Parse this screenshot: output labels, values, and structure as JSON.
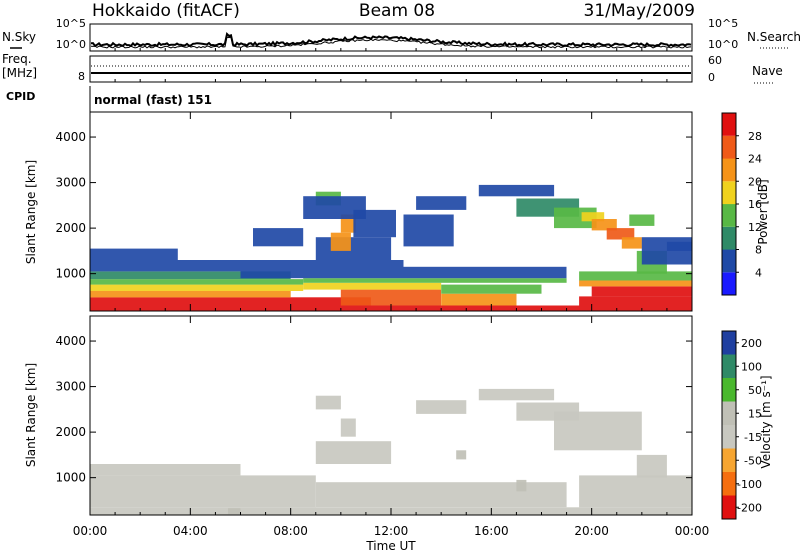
{
  "header": {
    "station": "Hokkaido (fitACF)",
    "beam": "Beam 08",
    "date": "31/May/2009"
  },
  "top_panels": {
    "nsky_label": "N.Sky",
    "nsearch_label": "N.Search",
    "noise_ticks": [
      "10^5",
      "10^0"
    ],
    "freq_label_1": "Freq.",
    "freq_label_2": "[MHz]",
    "freq_tick": "8",
    "nave_label": "Nave",
    "nave_ticks": [
      "60",
      "0"
    ],
    "cpid_label": "CPID",
    "cpid_value": "normal (fast) 151"
  },
  "colors": {
    "power": [
      "#1a1aff",
      "#1f49a6",
      "#2f8a67",
      "#58b845",
      "#f0d21e",
      "#f59318",
      "#ef5a18",
      "#e01010"
    ],
    "velocity": [
      "#e01010",
      "#f56e0f",
      "#f6a531",
      "#c8c8c0",
      "#c0c0b6",
      "#4ab82e",
      "#2f8a67",
      "#1f3fa0"
    ]
  },
  "chart_data": [
    {
      "type": "heatmap",
      "name": "power",
      "xlabel": "",
      "ylabel": "Slant Range [km]",
      "xlim": [
        0,
        24
      ],
      "ylim": [
        180,
        4550
      ],
      "y_ticks": [
        "1000",
        "2000",
        "3000",
        "4000"
      ],
      "y_tick_values": [
        1000,
        2000,
        3000,
        4000
      ],
      "colorbar_label": "Power [dB]",
      "colorbar_ticks": [
        "4",
        "8",
        "12",
        "16",
        "20",
        "24",
        "28"
      ],
      "colorbar_tick_values": [
        4,
        8,
        12,
        16,
        20,
        24,
        28
      ],
      "colorbar_range": [
        0,
        32
      ],
      "regions": [
        {
          "t0": 0.0,
          "t1": 24.0,
          "r0": 180,
          "r1": 300,
          "v": 30
        },
        {
          "t0": 0.0,
          "t1": 11.2,
          "r0": 300,
          "r1": 480,
          "v": 30
        },
        {
          "t0": 10.0,
          "t1": 14.0,
          "r0": 300,
          "r1": 650,
          "v": 25
        },
        {
          "t0": 14.0,
          "t1": 17.0,
          "r0": 300,
          "r1": 560,
          "v": 22
        },
        {
          "t0": 19.5,
          "t1": 24.0,
          "r0": 300,
          "r1": 500,
          "v": 30
        },
        {
          "t0": 0.0,
          "t1": 8.0,
          "r0": 480,
          "r1": 620,
          "v": 21
        },
        {
          "t0": 20.0,
          "t1": 24.0,
          "r0": 500,
          "r1": 720,
          "v": 28
        },
        {
          "t0": 0.0,
          "t1": 8.5,
          "r0": 620,
          "r1": 760,
          "v": 17
        },
        {
          "t0": 8.5,
          "t1": 14.0,
          "r0": 650,
          "r1": 800,
          "v": 16
        },
        {
          "t0": 14.0,
          "t1": 18.0,
          "r0": 560,
          "r1": 760,
          "v": 15
        },
        {
          "t0": 0.0,
          "t1": 8.5,
          "r0": 760,
          "r1": 880,
          "v": 13
        },
        {
          "t0": 8.5,
          "t1": 19.0,
          "r0": 800,
          "r1": 900,
          "v": 12
        },
        {
          "t0": 19.5,
          "t1": 24.0,
          "r0": 720,
          "r1": 850,
          "v": 21
        },
        {
          "t0": 0.0,
          "t1": 8.0,
          "r0": 880,
          "r1": 1050,
          "v": 11
        },
        {
          "t0": 19.5,
          "t1": 24.0,
          "r0": 850,
          "r1": 1050,
          "v": 12
        },
        {
          "t0": 0.0,
          "t1": 6.0,
          "r0": 1050,
          "r1": 1300,
          "v": 7
        },
        {
          "t0": 6.0,
          "t1": 12.5,
          "r0": 900,
          "r1": 1300,
          "v": 6
        },
        {
          "t0": 12.5,
          "t1": 19.0,
          "r0": 900,
          "r1": 1150,
          "v": 6
        },
        {
          "t0": 0.0,
          "t1": 3.5,
          "r0": 1300,
          "r1": 1550,
          "v": 5
        },
        {
          "t0": 9.0,
          "t1": 12.0,
          "r0": 1300,
          "r1": 1800,
          "v": 5
        },
        {
          "t0": 9.6,
          "t1": 10.4,
          "r0": 1500,
          "r1": 1900,
          "v": 20
        },
        {
          "t0": 10.0,
          "t1": 10.6,
          "r0": 1900,
          "r1": 2300,
          "v": 21
        },
        {
          "t0": 9.0,
          "t1": 10.0,
          "r0": 2500,
          "r1": 2800,
          "v": 13
        },
        {
          "t0": 8.5,
          "t1": 11.0,
          "r0": 2200,
          "r1": 2700,
          "v": 6
        },
        {
          "t0": 10.5,
          "t1": 12.2,
          "r0": 1800,
          "r1": 2400,
          "v": 6
        },
        {
          "t0": 6.5,
          "t1": 8.5,
          "r0": 1600,
          "r1": 2000,
          "v": 5
        },
        {
          "t0": 12.5,
          "t1": 14.5,
          "r0": 1600,
          "r1": 2300,
          "v": 5
        },
        {
          "t0": 13.0,
          "t1": 15.0,
          "r0": 2400,
          "r1": 2700,
          "v": 6
        },
        {
          "t0": 15.5,
          "t1": 18.5,
          "r0": 2700,
          "r1": 2950,
          "v": 7
        },
        {
          "t0": 17.0,
          "t1": 19.5,
          "r0": 2250,
          "r1": 2650,
          "v": 8
        },
        {
          "t0": 18.5,
          "t1": 20.2,
          "r0": 2000,
          "r1": 2450,
          "v": 12
        },
        {
          "t0": 19.6,
          "t1": 20.5,
          "r0": 2150,
          "r1": 2350,
          "v": 18
        },
        {
          "t0": 20.0,
          "t1": 21.0,
          "r0": 1950,
          "r1": 2200,
          "v": 23
        },
        {
          "t0": 20.6,
          "t1": 21.7,
          "r0": 1750,
          "r1": 2000,
          "v": 27
        },
        {
          "t0": 21.2,
          "t1": 22.0,
          "r0": 1550,
          "r1": 1800,
          "v": 23
        },
        {
          "t0": 21.8,
          "t1": 23.0,
          "r0": 1000,
          "r1": 1500,
          "v": 14
        },
        {
          "t0": 21.5,
          "t1": 22.5,
          "r0": 2050,
          "r1": 2300,
          "v": 15
        },
        {
          "t0": 22.0,
          "t1": 24.0,
          "r0": 1200,
          "r1": 1800,
          "v": 6
        },
        {
          "t0": 23.0,
          "t1": 24.0,
          "r0": 1500,
          "r1": 1700,
          "v": 6
        }
      ]
    },
    {
      "type": "heatmap",
      "name": "velocity",
      "xlabel": "Time UT",
      "ylabel": "Slant Range [km]",
      "xlim": [
        0,
        24
      ],
      "ylim": [
        180,
        4550
      ],
      "x_ticks": [
        "00:00",
        "04:00",
        "08:00",
        "12:00",
        "16:00",
        "20:00",
        "00:00"
      ],
      "x_tick_values": [
        0,
        4,
        8,
        12,
        16,
        20,
        24
      ],
      "y_ticks": [
        "1000",
        "2000",
        "3000",
        "4000"
      ],
      "y_tick_values": [
        1000,
        2000,
        3000,
        4000
      ],
      "colorbar_label": "Velocity [m s⁻¹]",
      "colorbar_ticks": [
        "-200",
        "-100",
        "-50",
        "-15",
        "15",
        "50",
        "100",
        "200"
      ],
      "colorbar_tick_values": [
        -200,
        -100,
        -50,
        -15,
        15,
        50,
        100,
        200
      ],
      "regions": [
        {
          "t0": 0.0,
          "t1": 24.0,
          "r0": 180,
          "r1": 350,
          "v": 0
        },
        {
          "t0": 0.0,
          "t1": 9.0,
          "r0": 350,
          "r1": 1050,
          "v": 0
        },
        {
          "t0": 9.0,
          "t1": 19.0,
          "r0": 350,
          "r1": 900,
          "v": 0
        },
        {
          "t0": 19.5,
          "t1": 24.0,
          "r0": 350,
          "r1": 1050,
          "v": 0
        },
        {
          "t0": 0.0,
          "t1": 6.0,
          "r0": 1050,
          "r1": 1300,
          "v": 0
        },
        {
          "t0": 9.0,
          "t1": 12.0,
          "r0": 1300,
          "r1": 1800,
          "v": 0
        },
        {
          "t0": 10.0,
          "t1": 10.6,
          "r0": 1900,
          "r1": 2300,
          "v": 0
        },
        {
          "t0": 9.0,
          "t1": 10.0,
          "r0": 2500,
          "r1": 2800,
          "v": 0
        },
        {
          "t0": 15.5,
          "t1": 18.5,
          "r0": 2700,
          "r1": 2950,
          "v": 0
        },
        {
          "t0": 17.0,
          "t1": 19.5,
          "r0": 2250,
          "r1": 2650,
          "v": 0
        },
        {
          "t0": 18.5,
          "t1": 22.0,
          "r0": 1600,
          "r1": 2450,
          "v": 0
        },
        {
          "t0": 21.8,
          "t1": 23.0,
          "r0": 1000,
          "r1": 1500,
          "v": 0
        },
        {
          "t0": 13.0,
          "t1": 15.0,
          "r0": 2400,
          "r1": 2700,
          "v": 0
        },
        {
          "t0": 17.0,
          "t1": 17.4,
          "r0": 700,
          "r1": 950,
          "v": 35
        },
        {
          "t0": 14.6,
          "t1": 15.0,
          "r0": 1400,
          "r1": 1600,
          "v": 35
        },
        {
          "t0": 5.5,
          "t1": 6.0,
          "r0": 200,
          "r1": 330,
          "v": 40
        }
      ]
    }
  ]
}
